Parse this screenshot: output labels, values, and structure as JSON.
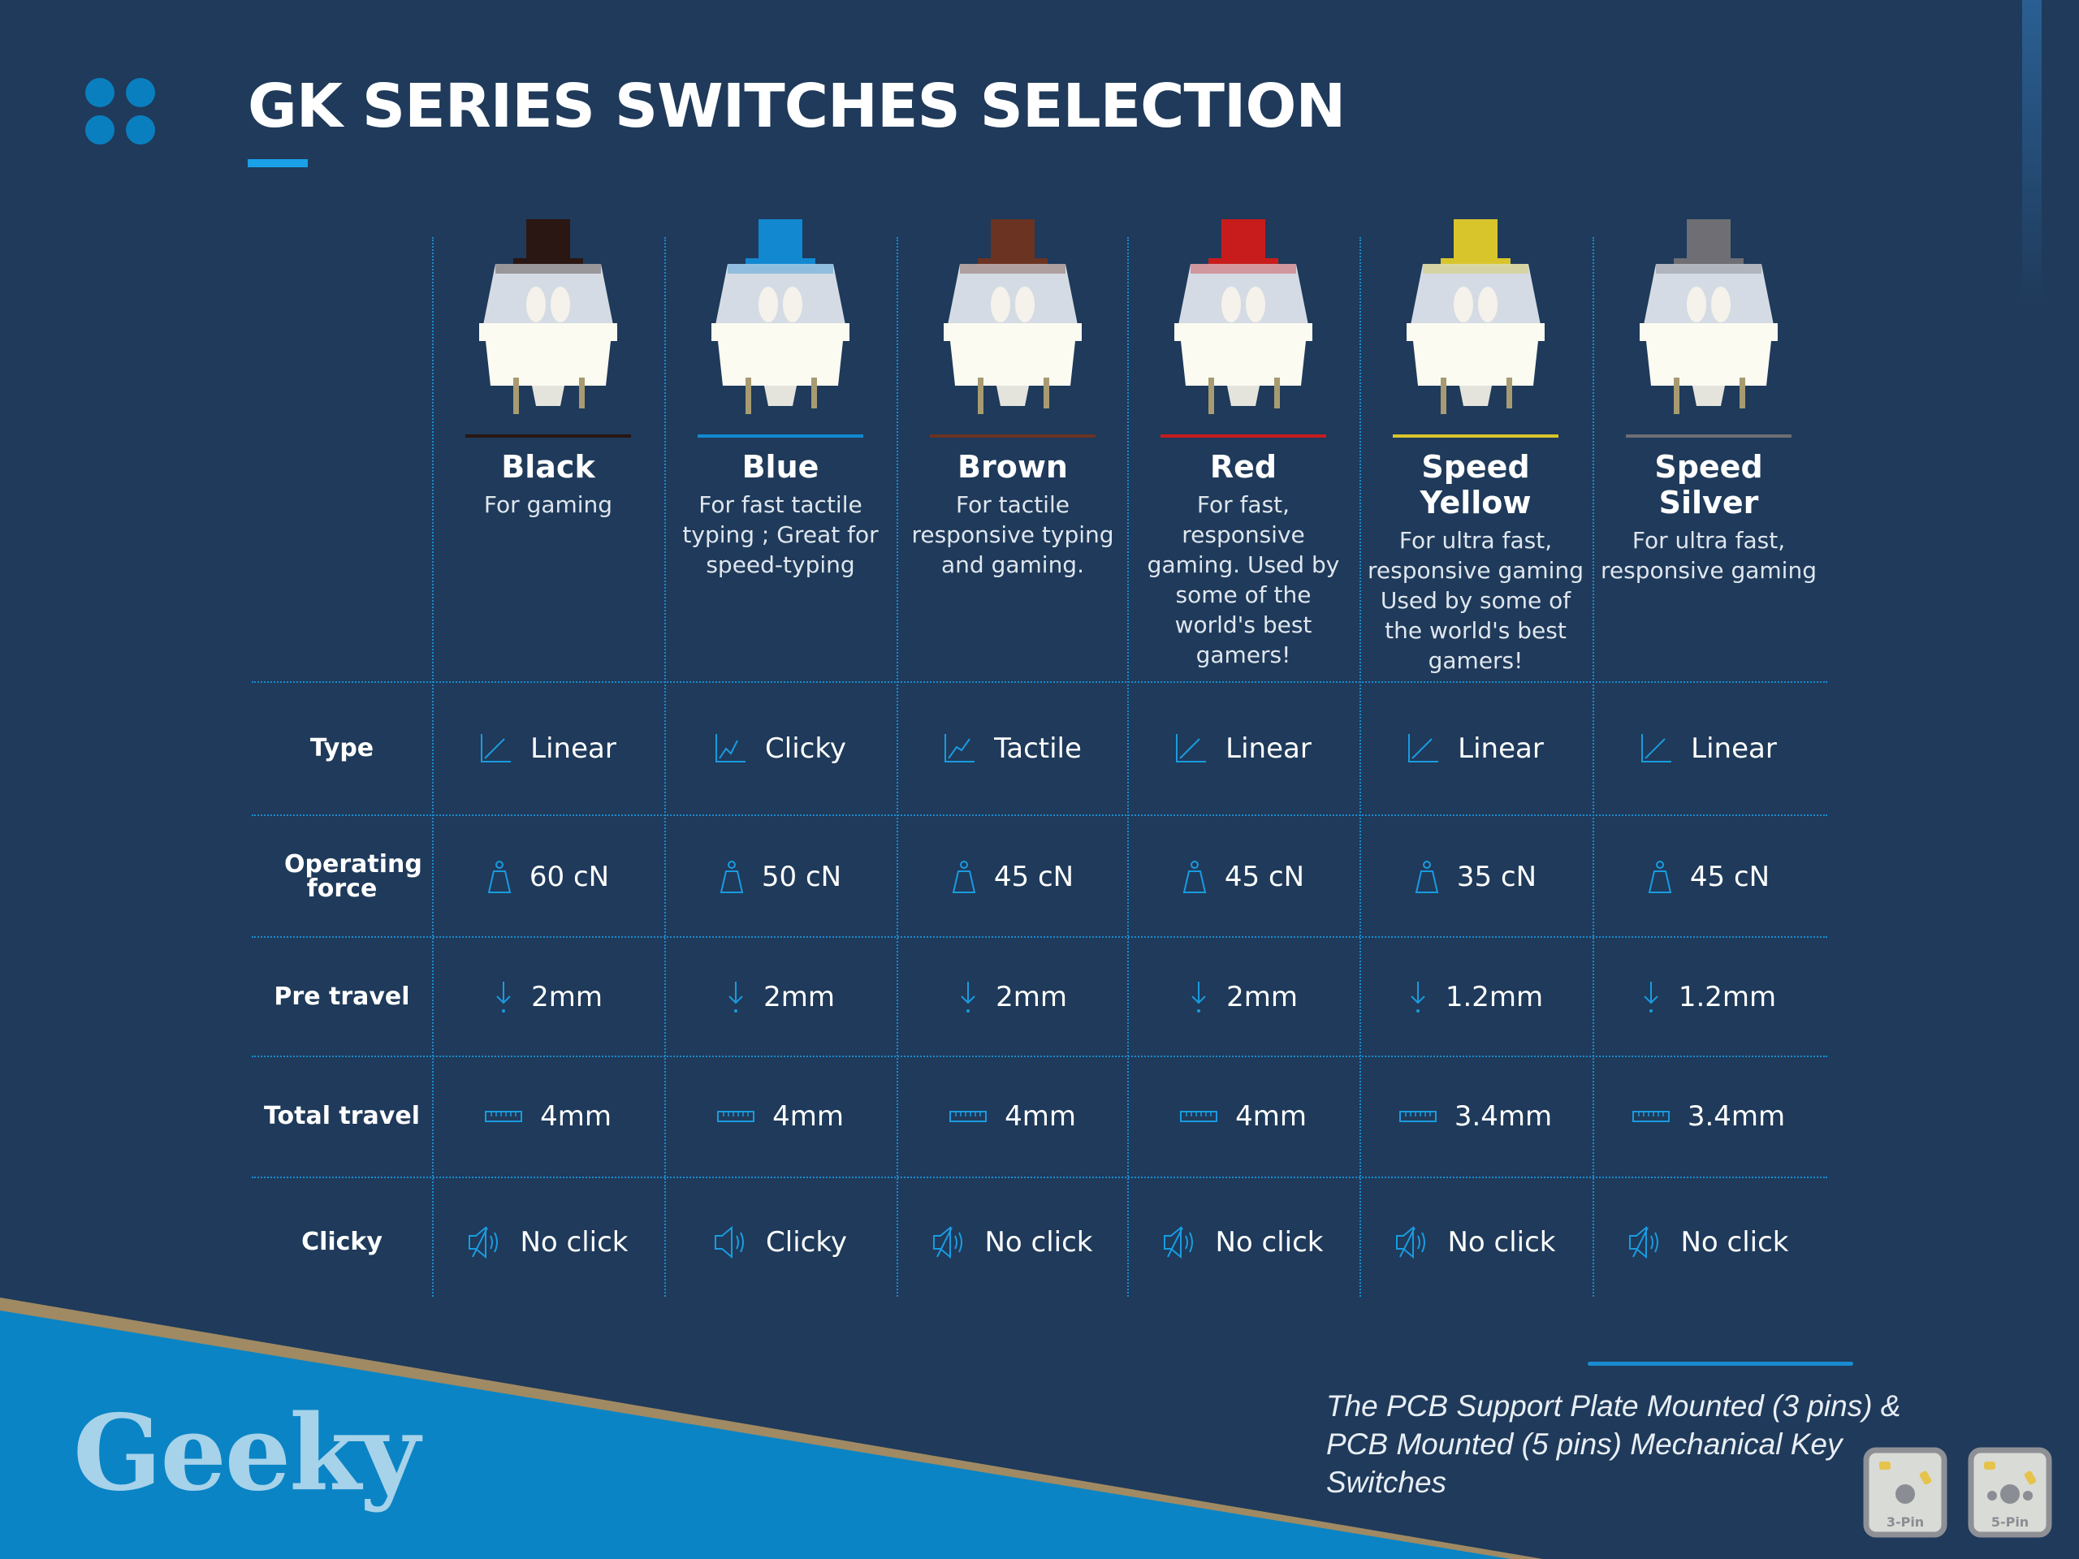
{
  "header": {
    "title": "GK SERIES SWITCHES SELECTION",
    "icon": "four-dots-icon",
    "accent_color": "#1aa0e6"
  },
  "switches": [
    {
      "name": "Black",
      "desc": "For gaming",
      "color": "#2a1612",
      "type": "Linear",
      "force": "60 cN",
      "pre_travel": "2mm",
      "total_travel": "4mm",
      "clicky": "No click"
    },
    {
      "name": "Blue",
      "desc": "For fast tactile typing ; Great for speed-typing",
      "color": "#1288d0",
      "type": "Clicky",
      "force": "50 cN",
      "pre_travel": "2mm",
      "total_travel": "4mm",
      "clicky": "Clicky"
    },
    {
      "name": "Brown",
      "desc": "For tactile responsive typing and gaming.",
      "color": "#6b3322",
      "type": "Tactile",
      "force": "45 cN",
      "pre_travel": "2mm",
      "total_travel": "4mm",
      "clicky": "No click"
    },
    {
      "name": "Red",
      "desc": "For fast, responsive gaming. Used by some of the world's best gamers!",
      "color": "#c81c1c",
      "type": "Linear",
      "force": "45 cN",
      "pre_travel": "2mm",
      "total_travel": "4mm",
      "clicky": "No click"
    },
    {
      "name": "Speed Yellow",
      "desc": "For ultra fast, responsive gaming Used by some of the world's best gamers!",
      "color": "#d8c52c",
      "type": "Linear",
      "force": "35 cN",
      "pre_travel": "1.2mm",
      "total_travel": "3.4mm",
      "clicky": "No click"
    },
    {
      "name": "Speed Silver",
      "desc": "For ultra fast, responsive gaming",
      "color": "#6e6e74",
      "type": "Linear",
      "force": "45 cN",
      "pre_travel": "1.2mm",
      "total_travel": "3.4mm",
      "clicky": "No click"
    }
  ],
  "rows": {
    "type": "Type",
    "force": "Operating force",
    "pre_travel": "Pre travel",
    "total_travel": "Total travel",
    "clicky": "Clicky"
  },
  "icons": {
    "type": "graph-icon",
    "force": "weight-icon",
    "pre_travel": "arrow-down-icon",
    "total_travel": "ruler-icon",
    "clicky": "speaker-icon"
  },
  "footer": {
    "logo": "Geeky",
    "note": "The PCB Support Plate Mounted (3 pins) & PCB Mounted (5 pins) Mechanical Key Switches",
    "pins": [
      "3-Pin",
      "5-Pin"
    ]
  }
}
